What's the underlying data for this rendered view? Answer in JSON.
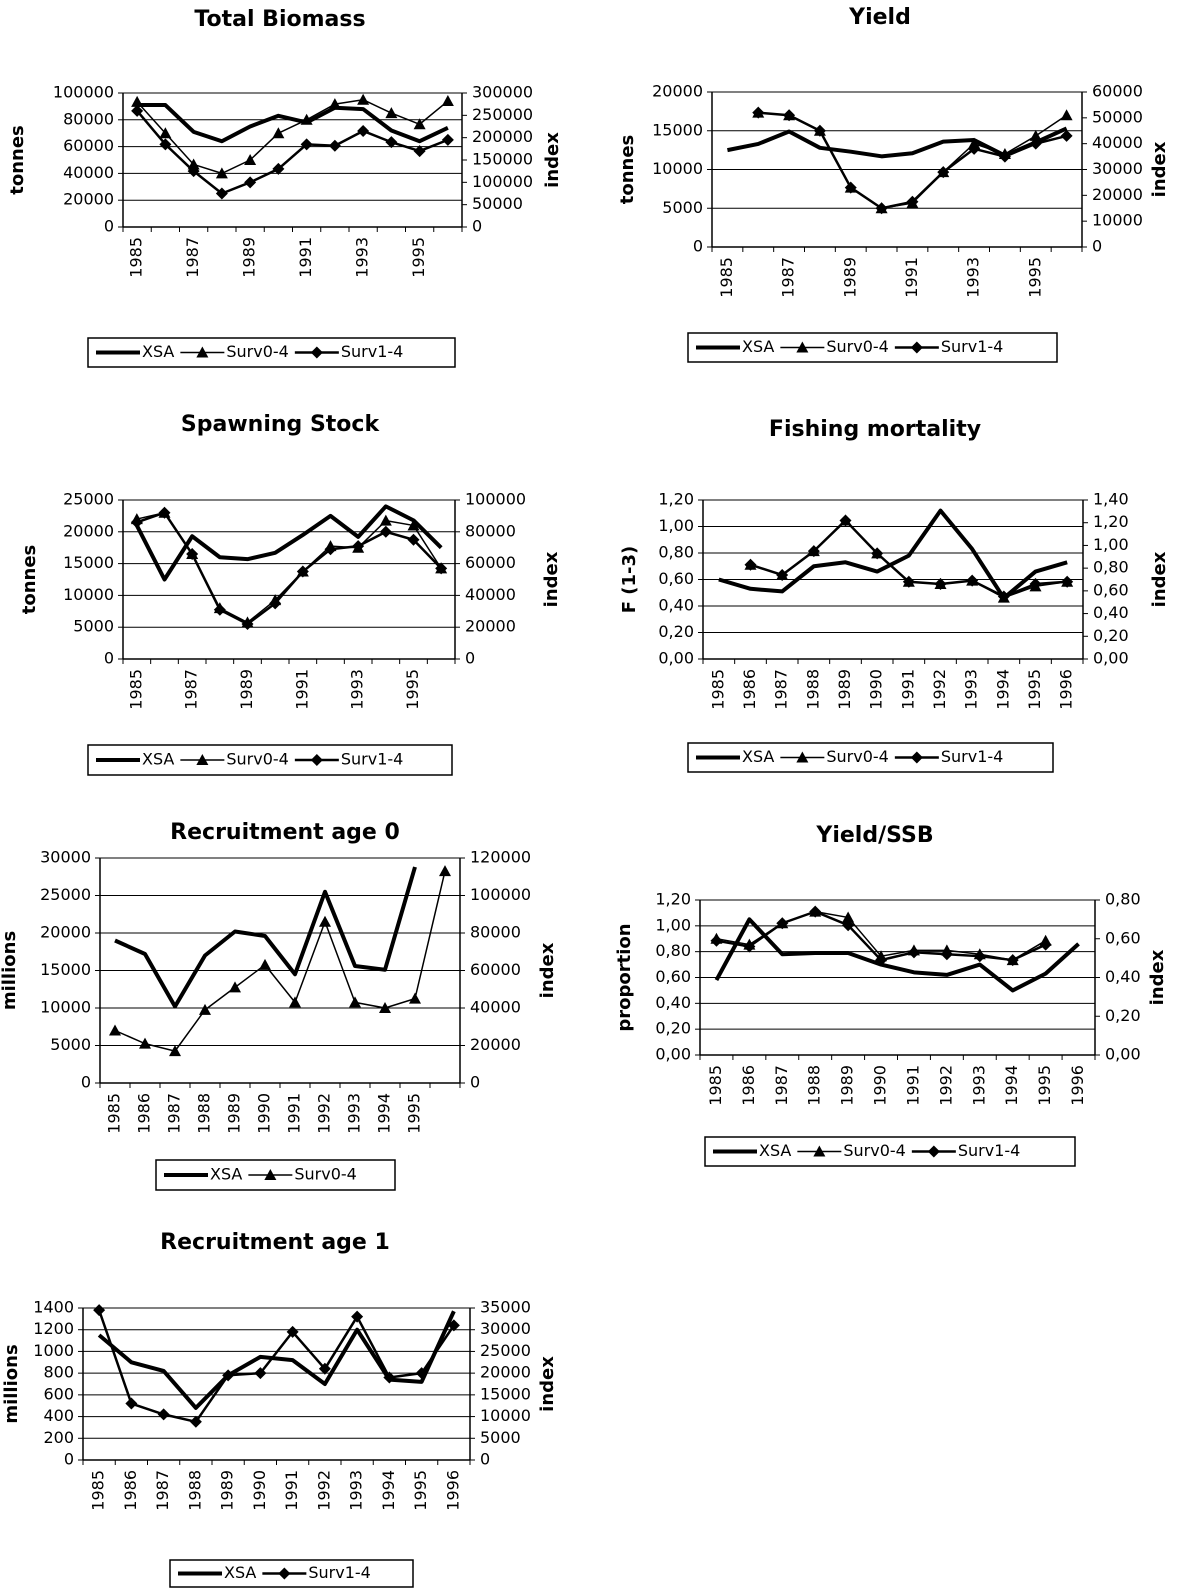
{
  "chart_data": [
    {
      "type": "line",
      "title": "Total Biomass",
      "ylabel": "tonnes",
      "y2label": "index",
      "categories": [
        "1985",
        null,
        "1987",
        null,
        "1989",
        null,
        "1991",
        null,
        "1993",
        null,
        "1995",
        null
      ],
      "ylim": [
        0,
        100000
      ],
      "yticks": [
        0,
        20000,
        40000,
        60000,
        80000,
        100000
      ],
      "y2lim": [
        0,
        300000
      ],
      "y2ticks": [
        0,
        50000,
        100000,
        150000,
        200000,
        250000,
        300000
      ],
      "grid": true,
      "series": [
        {
          "name": "XSA",
          "color": "#000000",
          "marker": "none",
          "values": [
            91000,
            91000,
            71000,
            64000,
            75000,
            83000,
            78000,
            89000,
            88000,
            72000,
            64000,
            74000
          ]
        },
        {
          "name": "Surv0-4",
          "color": "#000000",
          "marker": "triangle",
          "axis": "y2",
          "values": [
            280000,
            210000,
            140000,
            120000,
            150000,
            210000,
            240000,
            275000,
            285000,
            255000,
            230000,
            282000
          ]
        },
        {
          "name": "Surv1-4",
          "color": "#000000",
          "marker": "diamond",
          "axis": "y2",
          "values": [
            260000,
            185000,
            125000,
            75000,
            100000,
            130000,
            185000,
            182000,
            215000,
            190000,
            170000,
            195000
          ]
        }
      ]
    },
    {
      "type": "line",
      "title": "Yield",
      "ylabel": "tonnes",
      "y2label": "index",
      "categories": [
        "1985",
        null,
        "1987",
        null,
        "1989",
        null,
        "1991",
        null,
        "1993",
        null,
        "1995",
        null
      ],
      "ylim": [
        0,
        20000
      ],
      "yticks": [
        0,
        5000,
        10000,
        15000,
        20000
      ],
      "y2lim": [
        0,
        60000
      ],
      "y2ticks": [
        0,
        10000,
        20000,
        30000,
        40000,
        50000,
        60000
      ],
      "grid": true,
      "series": [
        {
          "name": "XSA",
          "color": "#000000",
          "marker": "none",
          "values": [
            12500,
            13300,
            14900,
            12800,
            12300,
            11700,
            12100,
            13600,
            13800,
            11800,
            13500,
            15300
          ]
        },
        {
          "name": "Surv0-4",
          "color": "#000000",
          "marker": "triangle",
          "axis": "y2",
          "values": [
            null,
            52000,
            51000,
            45000,
            23000,
            15000,
            17000,
            29000,
            40000,
            36000,
            43000,
            51000
          ]
        },
        {
          "name": "Surv1-4",
          "color": "#000000",
          "marker": "diamond",
          "axis": "y2",
          "values": [
            null,
            52000,
            51000,
            45000,
            23000,
            15000,
            17500,
            29000,
            38000,
            35000,
            40000,
            43000
          ]
        }
      ]
    },
    {
      "type": "line",
      "title": "Spawning Stock",
      "ylabel": "tonnes",
      "y2label": "index",
      "categories": [
        "1985",
        null,
        "1987",
        null,
        "1989",
        null,
        "1991",
        null,
        "1993",
        null,
        "1995",
        null
      ],
      "ylim": [
        0,
        25000
      ],
      "yticks": [
        0,
        5000,
        10000,
        15000,
        20000,
        25000
      ],
      "y2lim": [
        0,
        100000
      ],
      "y2ticks": [
        0,
        20000,
        40000,
        60000,
        80000,
        100000
      ],
      "grid": true,
      "series": [
        {
          "name": "XSA",
          "color": "#000000",
          "marker": "none",
          "values": [
            21000,
            12500,
            19300,
            16000,
            15700,
            16700,
            19500,
            22500,
            19200,
            24000,
            21800,
            17500
          ]
        },
        {
          "name": "Surv0-4",
          "color": "#000000",
          "marker": "triangle",
          "axis": "y2",
          "values": [
            88000,
            92000,
            66000,
            32000,
            23000,
            37000,
            55000,
            71000,
            70000,
            87000,
            84000,
            57000
          ]
        },
        {
          "name": "Surv1-4",
          "color": "#000000",
          "marker": "diamond",
          "axis": "y2",
          "values": [
            86000,
            92000,
            66000,
            31000,
            22000,
            35000,
            55000,
            69000,
            71000,
            80000,
            75000,
            57000
          ]
        }
      ]
    },
    {
      "type": "line",
      "title": "Fishing mortality",
      "ylabel": "F (1-3)",
      "y2label": "index",
      "categories": [
        "1985",
        "1986",
        "1987",
        "1988",
        "1989",
        "1990",
        "1991",
        "1992",
        "1993",
        "1994",
        "1995",
        "1996"
      ],
      "ylim": [
        0,
        1.2
      ],
      "yticks": [
        {
          "value": 0,
          "label": "0,00"
        },
        {
          "value": 0.2,
          "label": "0,20"
        },
        {
          "value": 0.4,
          "label": "0,40"
        },
        {
          "value": 0.6,
          "label": "0,60"
        },
        {
          "value": 0.8,
          "label": "0,80"
        },
        {
          "value": 1.0,
          "label": "1,00"
        },
        {
          "value": 1.2,
          "label": "1,20"
        }
      ],
      "y2lim": [
        0,
        1.4
      ],
      "y2ticks": [
        {
          "value": 0,
          "label": "0,00"
        },
        {
          "value": 0.2,
          "label": "0,20"
        },
        {
          "value": 0.4,
          "label": "0,40"
        },
        {
          "value": 0.6,
          "label": "0,60"
        },
        {
          "value": 0.8,
          "label": "0,80"
        },
        {
          "value": 1.0,
          "label": "1,00"
        },
        {
          "value": 1.2,
          "label": "1,20"
        },
        {
          "value": 1.4,
          "label": "1,40"
        }
      ],
      "grid": true,
      "series": [
        {
          "name": "XSA",
          "color": "#000000",
          "marker": "none",
          "values": [
            0.6,
            0.53,
            0.51,
            0.7,
            0.73,
            0.66,
            0.78,
            1.12,
            0.83,
            0.46,
            0.66,
            0.73
          ]
        },
        {
          "name": "Surv0-4",
          "color": "#000000",
          "marker": "triangle",
          "axis": "y2",
          "values": [
            null,
            0.83,
            0.74,
            0.95,
            1.22,
            0.93,
            0.68,
            0.66,
            0.69,
            0.54,
            0.64,
            0.68
          ]
        },
        {
          "name": "Surv1-4",
          "color": "#000000",
          "marker": "diamond",
          "axis": "y2",
          "values": [
            null,
            0.83,
            0.74,
            0.95,
            1.22,
            0.93,
            0.68,
            0.66,
            0.69,
            0.55,
            0.66,
            0.68
          ]
        }
      ]
    },
    {
      "type": "line",
      "title": "Recruitment age 0",
      "ylabel": "millions",
      "y2label": "index",
      "categories": [
        "1985",
        "1986",
        "1987",
        "1988",
        "1989",
        "1990",
        "1991",
        "1992",
        "1993",
        "1994",
        "1995",
        null
      ],
      "ylim": [
        0,
        30000
      ],
      "yticks": [
        0,
        5000,
        10000,
        15000,
        20000,
        25000,
        30000
      ],
      "y2lim": [
        0,
        120000
      ],
      "y2ticks": [
        0,
        20000,
        40000,
        60000,
        80000,
        100000,
        120000
      ],
      "grid": true,
      "series": [
        {
          "name": "XSA",
          "color": "#000000",
          "marker": "none",
          "values": [
            19000,
            17200,
            10200,
            17000,
            20200,
            19600,
            14500,
            25500,
            15600,
            15100,
            28800,
            null
          ]
        },
        {
          "name": "Surv0-4",
          "color": "#000000",
          "marker": "triangle",
          "axis": "y2",
          "values": [
            28000,
            21000,
            17000,
            39000,
            51000,
            63000,
            43000,
            86000,
            43000,
            40000,
            45000,
            113000
          ]
        }
      ]
    },
    {
      "type": "line",
      "title": "Yield/SSB",
      "ylabel": "proportion",
      "y2label": "index",
      "categories": [
        "1985",
        "1986",
        "1987",
        "1988",
        "1989",
        "1990",
        "1991",
        "1992",
        "1993",
        "1994",
        "1995",
        "1996"
      ],
      "ylim": [
        0,
        1.2
      ],
      "yticks": [
        {
          "value": 0,
          "label": "0,00"
        },
        {
          "value": 0.2,
          "label": "0,20"
        },
        {
          "value": 0.4,
          "label": "0,40"
        },
        {
          "value": 0.6,
          "label": "0,60"
        },
        {
          "value": 0.8,
          "label": "0,80"
        },
        {
          "value": 1.0,
          "label": "1,00"
        },
        {
          "value": 1.2,
          "label": "1,20"
        }
      ],
      "y2lim": [
        0,
        0.8
      ],
      "y2ticks": [
        {
          "value": 0,
          "label": "0,00"
        },
        {
          "value": 0.2,
          "label": "0,20"
        },
        {
          "value": 0.4,
          "label": "0,40"
        },
        {
          "value": 0.6,
          "label": "0,60"
        },
        {
          "value": 0.8,
          "label": "0,80"
        }
      ],
      "grid": true,
      "series": [
        {
          "name": "XSA",
          "color": "#000000",
          "marker": "none",
          "values": [
            0.58,
            1.05,
            0.78,
            0.79,
            0.79,
            0.7,
            0.64,
            0.62,
            0.7,
            0.5,
            0.63,
            0.86
          ]
        },
        {
          "name": "Surv0-4",
          "color": "#000000",
          "marker": "triangle",
          "axis": "y2",
          "values": [
            0.6,
            0.57,
            0.68,
            0.74,
            0.71,
            0.51,
            0.54,
            0.54,
            0.52,
            0.49,
            0.59,
            null
          ]
        },
        {
          "name": "Surv1-4",
          "color": "#000000",
          "marker": "diamond",
          "axis": "y2",
          "values": [
            0.59,
            0.56,
            0.68,
            0.74,
            0.67,
            0.49,
            0.53,
            0.52,
            0.51,
            0.49,
            0.57,
            null
          ]
        }
      ]
    },
    {
      "type": "line",
      "title": "Recruitment age 1",
      "ylabel": "millions",
      "y2label": "index",
      "categories": [
        "1985",
        "1986",
        "1987",
        "1988",
        "1989",
        "1990",
        "1991",
        "1992",
        "1993",
        "1994",
        "1995",
        "1996"
      ],
      "ylim": [
        0,
        1400
      ],
      "yticks": [
        0,
        200,
        400,
        600,
        800,
        1000,
        1200,
        1400
      ],
      "y2lim": [
        0,
        35000
      ],
      "y2ticks": [
        0,
        5000,
        10000,
        15000,
        20000,
        25000,
        30000,
        35000
      ],
      "grid": true,
      "series": [
        {
          "name": "XSA",
          "color": "#000000",
          "marker": "none",
          "values": [
            1150,
            900,
            820,
            480,
            780,
            950,
            920,
            700,
            1200,
            740,
            720,
            1370
          ]
        },
        {
          "name": "Surv1-4",
          "color": "#000000",
          "marker": "diamond",
          "axis": "y2",
          "values": [
            34500,
            13000,
            10500,
            8800,
            19500,
            20000,
            29500,
            21000,
            33000,
            19000,
            20000,
            31000
          ]
        }
      ]
    }
  ]
}
